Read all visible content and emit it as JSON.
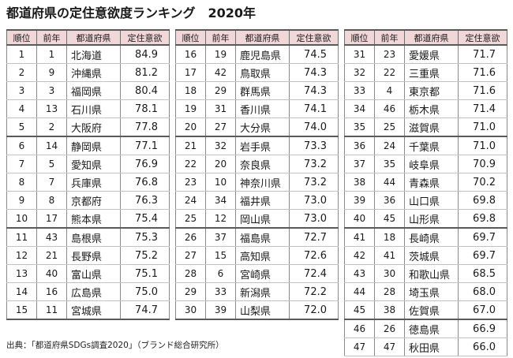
{
  "title": "都道府県の定住意欲度ランキング　2020年",
  "source": "出典：「都道府県SDGs調査2020」（ブランド総合研究所）",
  "header_color": "#f2d7d9",
  "chart_data": {
    "type": "table",
    "columns": [
      "順位",
      "前年",
      "都道府県",
      "定住意欲"
    ],
    "rows": [
      {
        "rank": "1",
        "prev": "1",
        "pref": "北海道",
        "score": "84.9"
      },
      {
        "rank": "2",
        "prev": "9",
        "pref": "沖縄県",
        "score": "81.2"
      },
      {
        "rank": "3",
        "prev": "3",
        "pref": "福岡県",
        "score": "80.4"
      },
      {
        "rank": "4",
        "prev": "13",
        "pref": "石川県",
        "score": "78.1"
      },
      {
        "rank": "5",
        "prev": "2",
        "pref": "大阪府",
        "score": "77.8"
      },
      {
        "rank": "6",
        "prev": "14",
        "pref": "静岡県",
        "score": "77.1"
      },
      {
        "rank": "7",
        "prev": "5",
        "pref": "愛知県",
        "score": "76.9"
      },
      {
        "rank": "8",
        "prev": "7",
        "pref": "兵庫県",
        "score": "76.8"
      },
      {
        "rank": "9",
        "prev": "8",
        "pref": "京都府",
        "score": "76.3"
      },
      {
        "rank": "10",
        "prev": "17",
        "pref": "熊本県",
        "score": "75.4"
      },
      {
        "rank": "11",
        "prev": "43",
        "pref": "島根県",
        "score": "75.3"
      },
      {
        "rank": "12",
        "prev": "21",
        "pref": "長野県",
        "score": "75.2"
      },
      {
        "rank": "13",
        "prev": "40",
        "pref": "富山県",
        "score": "75.1"
      },
      {
        "rank": "14",
        "prev": "16",
        "pref": "広島県",
        "score": "75.0"
      },
      {
        "rank": "15",
        "prev": "11",
        "pref": "宮城県",
        "score": "74.7"
      },
      {
        "rank": "16",
        "prev": "19",
        "pref": "鹿児島県",
        "score": "74.5"
      },
      {
        "rank": "17",
        "prev": "42",
        "pref": "鳥取県",
        "score": "74.3"
      },
      {
        "rank": "18",
        "prev": "29",
        "pref": "群馬県",
        "score": "74.3"
      },
      {
        "rank": "19",
        "prev": "31",
        "pref": "香川県",
        "score": "74.1"
      },
      {
        "rank": "20",
        "prev": "27",
        "pref": "大分県",
        "score": "74.0"
      },
      {
        "rank": "21",
        "prev": "32",
        "pref": "岩手県",
        "score": "73.3"
      },
      {
        "rank": "22",
        "prev": "20",
        "pref": "奈良県",
        "score": "73.2"
      },
      {
        "rank": "23",
        "prev": "10",
        "pref": "神奈川県",
        "score": "73.2"
      },
      {
        "rank": "24",
        "prev": "34",
        "pref": "福井県",
        "score": "73.0"
      },
      {
        "rank": "25",
        "prev": "12",
        "pref": "岡山県",
        "score": "73.0"
      },
      {
        "rank": "26",
        "prev": "37",
        "pref": "福島県",
        "score": "72.7"
      },
      {
        "rank": "27",
        "prev": "15",
        "pref": "高知県",
        "score": "72.6"
      },
      {
        "rank": "28",
        "prev": "6",
        "pref": "宮崎県",
        "score": "72.4"
      },
      {
        "rank": "29",
        "prev": "33",
        "pref": "新潟県",
        "score": "72.2"
      },
      {
        "rank": "30",
        "prev": "39",
        "pref": "山梨県",
        "score": "72.0"
      },
      {
        "rank": "31",
        "prev": "23",
        "pref": "愛媛県",
        "score": "71.7"
      },
      {
        "rank": "32",
        "prev": "22",
        "pref": "三重県",
        "score": "71.6"
      },
      {
        "rank": "33",
        "prev": "4",
        "pref": "東京都",
        "score": "71.6"
      },
      {
        "rank": "34",
        "prev": "46",
        "pref": "栃木県",
        "score": "71.4"
      },
      {
        "rank": "35",
        "prev": "25",
        "pref": "滋賀県",
        "score": "71.0"
      },
      {
        "rank": "36",
        "prev": "24",
        "pref": "千葉県",
        "score": "71.0"
      },
      {
        "rank": "37",
        "prev": "35",
        "pref": "岐阜県",
        "score": "70.9"
      },
      {
        "rank": "38",
        "prev": "44",
        "pref": "青森県",
        "score": "70.2"
      },
      {
        "rank": "39",
        "prev": "36",
        "pref": "山口県",
        "score": "69.8"
      },
      {
        "rank": "40",
        "prev": "45",
        "pref": "山形県",
        "score": "69.8"
      },
      {
        "rank": "41",
        "prev": "18",
        "pref": "長崎県",
        "score": "69.7"
      },
      {
        "rank": "42",
        "prev": "41",
        "pref": "茨城県",
        "score": "69.7"
      },
      {
        "rank": "43",
        "prev": "30",
        "pref": "和歌山県",
        "score": "68.5"
      },
      {
        "rank": "44",
        "prev": "28",
        "pref": "埼玉県",
        "score": "68.0"
      },
      {
        "rank": "45",
        "prev": "38",
        "pref": "佐賀県",
        "score": "67.0"
      },
      {
        "rank": "46",
        "prev": "26",
        "pref": "徳島県",
        "score": "66.9"
      },
      {
        "rank": "47",
        "prev": "47",
        "pref": "秋田県",
        "score": "66.0"
      }
    ]
  }
}
